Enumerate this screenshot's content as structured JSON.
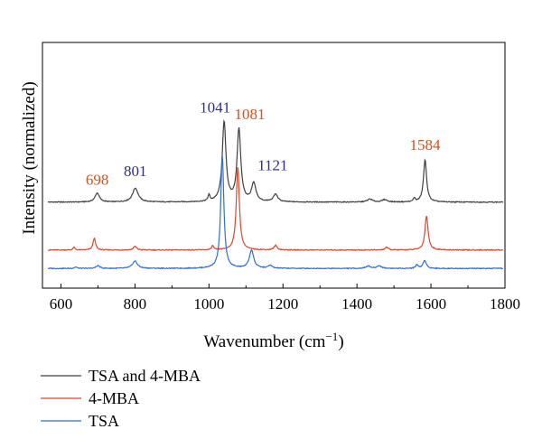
{
  "chart_data": {
    "type": "line",
    "xlabel": "Wavenumber (cm",
    "xlabel_sup": "−1",
    "xlabel_close": ")",
    "ylabel": "Intensity (normalized)",
    "xlim": [
      550,
      1800
    ],
    "xticks": [
      "600",
      "800",
      "1000",
      "1200",
      "1400",
      "1600",
      "1800"
    ],
    "yticks_shown": false,
    "grid": false,
    "legend_position": "bottom-left, below plot",
    "series": [
      {
        "name": "TSA and 4-MBA",
        "color": "#404040",
        "baseline_fraction": 0.35,
        "peaks": [
          {
            "x": 698,
            "height": 0.037,
            "width": 7
          },
          {
            "x": 801,
            "height": 0.057,
            "width": 9
          },
          {
            "x": 1000,
            "height": 0.025,
            "width": 3
          },
          {
            "x": 1041,
            "height": 0.325,
            "width": 6
          },
          {
            "x": 1081,
            "height": 0.295,
            "width": 6
          },
          {
            "x": 1121,
            "height": 0.074,
            "width": 7
          },
          {
            "x": 1180,
            "height": 0.031,
            "width": 7
          },
          {
            "x": 1435,
            "height": 0.012,
            "width": 8
          },
          {
            "x": 1475,
            "height": 0.01,
            "width": 8
          },
          {
            "x": 1555,
            "height": 0.015,
            "width": 3
          },
          {
            "x": 1584,
            "height": 0.172,
            "width": 5
          }
        ]
      },
      {
        "name": "4-MBA",
        "color": "#e0452b",
        "baseline_fraction": 0.155,
        "peaks": [
          {
            "x": 635,
            "height": 0.011,
            "width": 3
          },
          {
            "x": 690,
            "height": 0.049,
            "width": 4
          },
          {
            "x": 800,
            "height": 0.015,
            "width": 5
          },
          {
            "x": 1010,
            "height": 0.018,
            "width": 3
          },
          {
            "x": 1078,
            "height": 0.336,
            "width": 5
          },
          {
            "x": 1180,
            "height": 0.018,
            "width": 5
          },
          {
            "x": 1480,
            "height": 0.011,
            "width": 5
          },
          {
            "x": 1588,
            "height": 0.139,
            "width": 5
          }
        ]
      },
      {
        "name": "TSA",
        "color": "#2f6fd4",
        "baseline_fraction": 0.08,
        "peaks": [
          {
            "x": 640,
            "height": 0.006,
            "width": 4
          },
          {
            "x": 700,
            "height": 0.011,
            "width": 6
          },
          {
            "x": 800,
            "height": 0.03,
            "width": 8
          },
          {
            "x": 1036,
            "height": 0.463,
            "width": 5
          },
          {
            "x": 1115,
            "height": 0.074,
            "width": 7
          },
          {
            "x": 1165,
            "height": 0.012,
            "width": 6
          },
          {
            "x": 1430,
            "height": 0.01,
            "width": 7
          },
          {
            "x": 1460,
            "height": 0.011,
            "width": 7
          },
          {
            "x": 1562,
            "height": 0.015,
            "width": 4
          },
          {
            "x": 1583,
            "height": 0.034,
            "width": 5
          }
        ]
      }
    ],
    "annotations": [
      {
        "text": "698",
        "x": 698,
        "color": "#d4501e"
      },
      {
        "text": "801",
        "x": 801,
        "color": "#2e2f8c"
      },
      {
        "text": "1041",
        "x": 1041,
        "color": "#2e2f8c"
      },
      {
        "text": "1081",
        "x": 1081,
        "color": "#d4501e"
      },
      {
        "text": "1121",
        "x": 1121,
        "color": "#2e2f8c"
      },
      {
        "text": "1584",
        "x": 1584,
        "color": "#d4501e"
      }
    ]
  },
  "legend": {
    "items": [
      {
        "label": "TSA and 4-MBA",
        "color": "#404040"
      },
      {
        "label": "4-MBA",
        "color": "#e0452b"
      },
      {
        "label": "TSA",
        "color": "#2f6fd4"
      }
    ]
  }
}
